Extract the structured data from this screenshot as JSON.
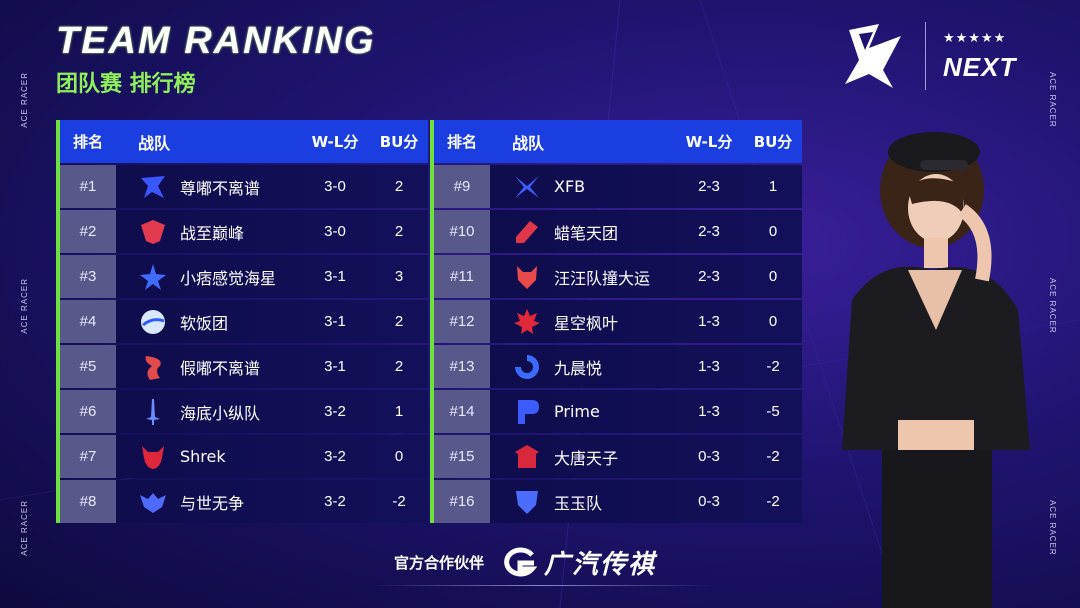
{
  "header": {
    "title": "TEAM RANKING",
    "subtitle": "团队赛 排行榜",
    "next_logo": "NEXT",
    "next_stars": "★★★★★"
  },
  "side_text": "ACE RACER",
  "table_headers": {
    "rank": "排名",
    "team": "战队",
    "wl": "W-L分",
    "bu": "BU分"
  },
  "left_rows": [
    {
      "rank": "#1",
      "team": "尊嘟不离谱",
      "wl": "3-0",
      "bu": "2",
      "icon": "blue-hawk-icon",
      "color": "#3a56ff"
    },
    {
      "rank": "#2",
      "team": "战至巅峰",
      "wl": "3-0",
      "bu": "2",
      "icon": "red-shield-icon",
      "color": "#e23a4f"
    },
    {
      "rank": "#3",
      "team": "小痞感觉海星",
      "wl": "3-1",
      "bu": "3",
      "icon": "blue-star-icon",
      "color": "#3f6bff"
    },
    {
      "rank": "#4",
      "team": "软饭团",
      "wl": "3-1",
      "bu": "2",
      "icon": "ball-icon",
      "color": "#d9e8ff"
    },
    {
      "rank": "#5",
      "team": "假嘟不离谱",
      "wl": "3-1",
      "bu": "2",
      "icon": "dragon-icon",
      "color": "#e34a4a"
    },
    {
      "rank": "#6",
      "team": "海底小纵队",
      "wl": "3-2",
      "bu": "1",
      "icon": "sword-icon",
      "color": "#6a8cff"
    },
    {
      "rank": "#7",
      "team": "Shrek",
      "wl": "3-2",
      "bu": "0",
      "icon": "devil-icon",
      "color": "#e0263a"
    },
    {
      "rank": "#8",
      "team": "与世无争",
      "wl": "3-2",
      "bu": "-2",
      "icon": "bat-icon",
      "color": "#4f6aff"
    }
  ],
  "right_rows": [
    {
      "rank": "#9",
      "team": "XFB",
      "wl": "2-3",
      "bu": "1",
      "icon": "x-wing-icon",
      "color": "#3e5cff"
    },
    {
      "rank": "#10",
      "team": "蜡笔天团",
      "wl": "2-3",
      "bu": "0",
      "icon": "crayon-icon",
      "color": "#e0364a"
    },
    {
      "rank": "#11",
      "team": "汪汪队撞大运",
      "wl": "2-3",
      "bu": "0",
      "icon": "wolf-icon",
      "color": "#e84a4a"
    },
    {
      "rank": "#12",
      "team": "星空枫叶",
      "wl": "1-3",
      "bu": "0",
      "icon": "maple-leaf-icon",
      "color": "#e0283a"
    },
    {
      "rank": "#13",
      "team": "九晨悦",
      "wl": "1-3",
      "bu": "-2",
      "icon": "swirl-icon",
      "color": "#3a6aff"
    },
    {
      "rank": "#14",
      "team": "Prime",
      "wl": "1-3",
      "bu": "-5",
      "icon": "p-letter-icon",
      "color": "#3c5cff"
    },
    {
      "rank": "#15",
      "team": "大唐天子",
      "wl": "0-3",
      "bu": "-2",
      "icon": "palace-icon",
      "color": "#d8283c"
    },
    {
      "rank": "#16",
      "team": "玉玉队",
      "wl": "0-3",
      "bu": "-2",
      "icon": "shield-v-icon",
      "color": "#4a6cff"
    }
  ],
  "sponsor": {
    "label": "官方合作伙伴",
    "name": "广汽传祺"
  },
  "colors": {
    "accent_green": "#8ff05a",
    "header_blue": "#1a3ee0",
    "row_bg": "#0e0c4a",
    "rank_bg": "#58588a"
  }
}
